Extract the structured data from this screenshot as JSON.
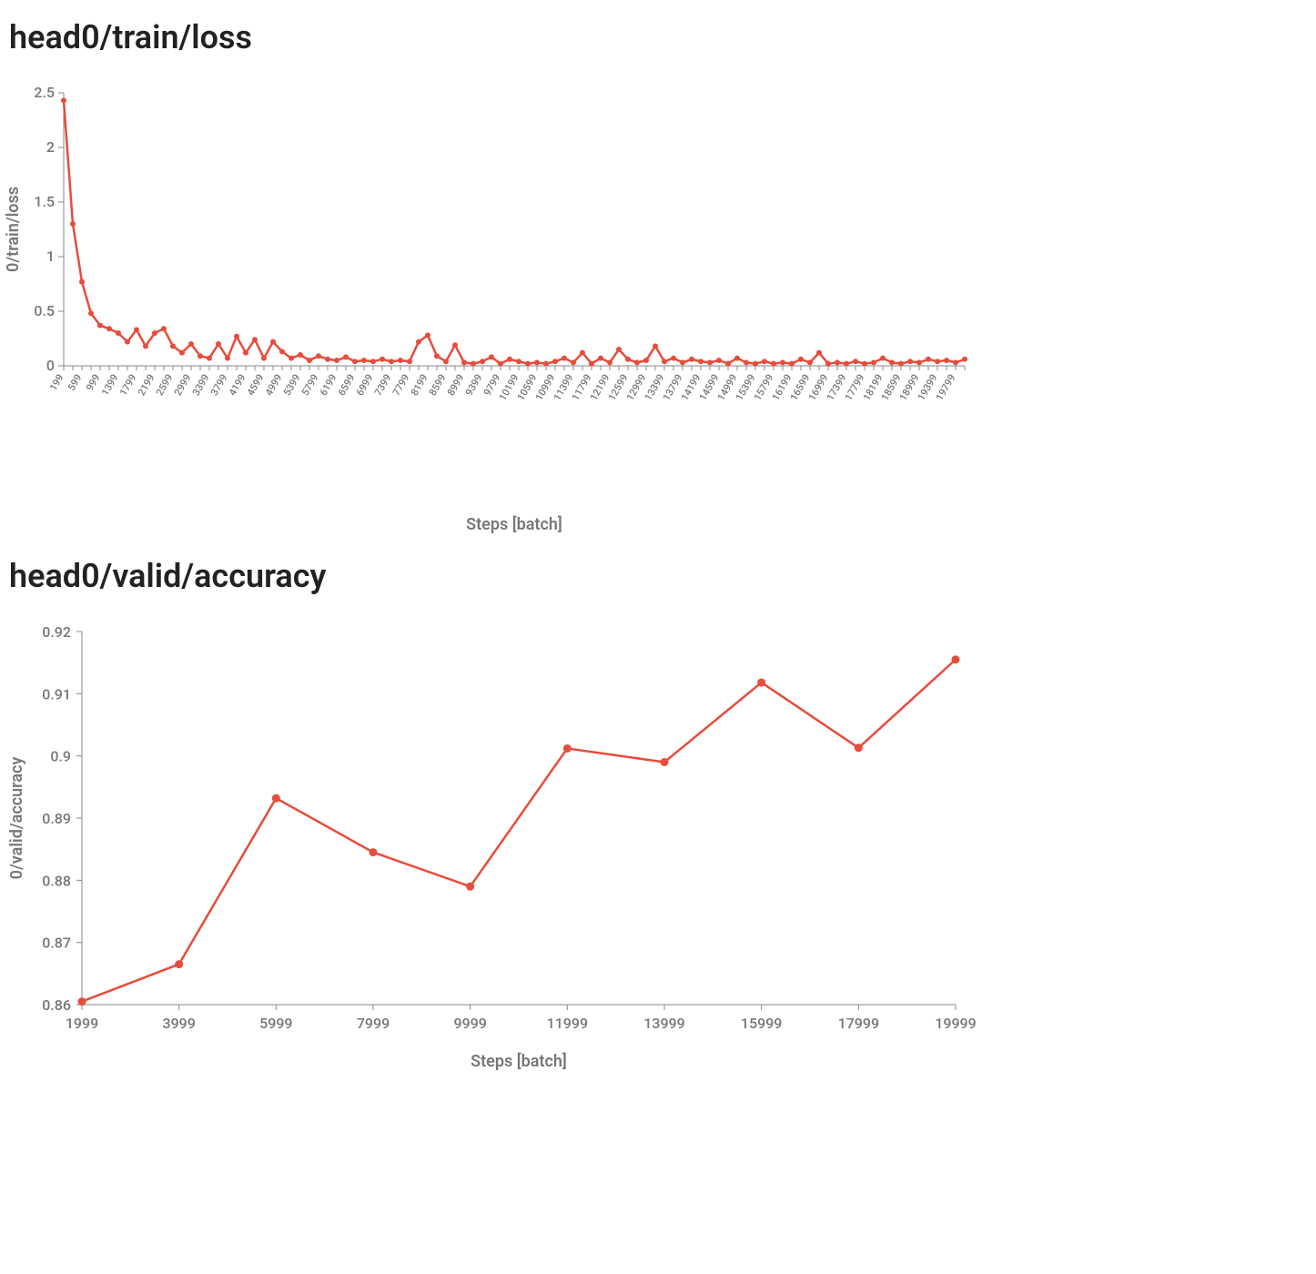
{
  "loss_chart": {
    "type": "line",
    "title": "head0/train/loss",
    "ylabel": "0/train/loss",
    "xlabel": "Steps [batch]",
    "title_fontsize": 36,
    "label_fontsize": 18,
    "tick_fontsize": 11,
    "line_color": "#e74c3c",
    "marker_color": "#e74c3c",
    "marker_radius": 3,
    "line_width": 2.5,
    "background_color": "#ffffff",
    "axis_color": "#888888",
    "tick_label_color": "#777777",
    "ylim": [
      0,
      2.5
    ],
    "ytick_step": 0.5,
    "x_step": 200,
    "x_tick_step": 400,
    "x_values": [
      199,
      399,
      599,
      799,
      999,
      1199,
      1399,
      1599,
      1799,
      1999,
      2199,
      2399,
      2599,
      2799,
      2999,
      3199,
      3399,
      3599,
      3799,
      3999,
      4199,
      4399,
      4599,
      4799,
      4999,
      5199,
      5399,
      5599,
      5799,
      5999,
      6199,
      6399,
      6599,
      6799,
      6999,
      7199,
      7399,
      7599,
      7799,
      7999,
      8199,
      8399,
      8599,
      8799,
      8999,
      9199,
      9399,
      9599,
      9799,
      9999,
      10199,
      10399,
      10599,
      10799,
      10999,
      11199,
      11399,
      11599,
      11799,
      11999,
      12199,
      12399,
      12599,
      12799,
      12999,
      13199,
      13399,
      13599,
      13799,
      13999,
      14199,
      14399,
      14599,
      14799,
      14999,
      15199,
      15399,
      15599,
      15799,
      15999,
      16199,
      16399,
      16599,
      16799,
      16999,
      17199,
      17399,
      17599,
      17799,
      17999,
      18199,
      18399,
      18599,
      18799,
      18999,
      19199,
      19399,
      19599,
      19799,
      19999
    ],
    "y_values": [
      2.43,
      1.3,
      0.77,
      0.48,
      0.37,
      0.34,
      0.3,
      0.22,
      0.33,
      0.18,
      0.3,
      0.34,
      0.18,
      0.12,
      0.2,
      0.09,
      0.07,
      0.2,
      0.07,
      0.27,
      0.12,
      0.24,
      0.07,
      0.22,
      0.13,
      0.07,
      0.1,
      0.05,
      0.09,
      0.06,
      0.05,
      0.08,
      0.04,
      0.05,
      0.04,
      0.06,
      0.04,
      0.05,
      0.04,
      0.22,
      0.28,
      0.09,
      0.04,
      0.19,
      0.03,
      0.02,
      0.04,
      0.08,
      0.02,
      0.06,
      0.04,
      0.02,
      0.03,
      0.02,
      0.04,
      0.07,
      0.03,
      0.12,
      0.02,
      0.07,
      0.03,
      0.15,
      0.06,
      0.03,
      0.05,
      0.18,
      0.04,
      0.07,
      0.03,
      0.06,
      0.04,
      0.03,
      0.05,
      0.02,
      0.07,
      0.03,
      0.02,
      0.04,
      0.02,
      0.03,
      0.02,
      0.06,
      0.03,
      0.12,
      0.02,
      0.03,
      0.02,
      0.04,
      0.02,
      0.03,
      0.07,
      0.03,
      0.02,
      0.04,
      0.03,
      0.06,
      0.04,
      0.05,
      0.03,
      0.06
    ]
  },
  "acc_chart": {
    "type": "line",
    "title": "head0/valid/accuracy",
    "ylabel": "0/valid/accuracy",
    "xlabel": "Steps [batch]",
    "title_fontsize": 36,
    "label_fontsize": 18,
    "tick_fontsize": 16,
    "line_color": "#e74c3c",
    "marker_color": "#e74c3c",
    "marker_radius": 4.5,
    "line_width": 2.5,
    "background_color": "#ffffff",
    "axis_color": "#888888",
    "tick_label_color": "#777777",
    "ylim": [
      0.86,
      0.92
    ],
    "ytick_step": 0.01,
    "x_values": [
      1999,
      3999,
      5999,
      7999,
      9999,
      11999,
      13999,
      15999,
      17999,
      19999
    ],
    "y_values": [
      0.8605,
      0.8665,
      0.8932,
      0.8845,
      0.879,
      0.9012,
      0.899,
      0.9118,
      0.9013,
      0.9155
    ]
  }
}
